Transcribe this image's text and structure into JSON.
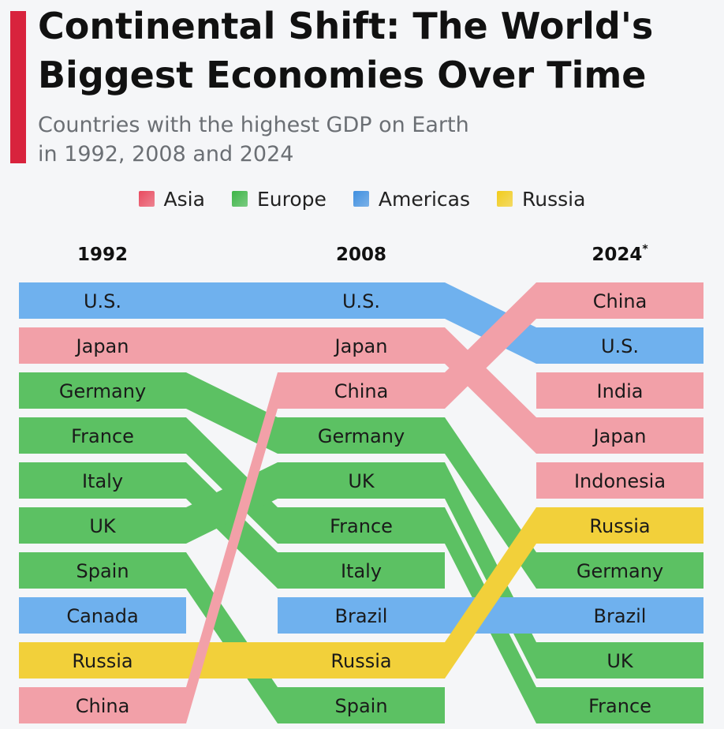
{
  "header": {
    "title": "Continental Shift: The World's Biggest Economies Over Time",
    "subtitle_line1": "Countries with the highest GDP on Earth",
    "subtitle_line2": "in 1992, 2008 and 2024"
  },
  "colors": {
    "accent": "#d8233d",
    "Asia": "#f2a0a8",
    "Europe": "#5cc163",
    "Americas": "#6fb1ee",
    "Russia": "#f2d03a"
  },
  "legend": [
    {
      "label": "Asia",
      "color": "#e94a5f"
    },
    {
      "label": "Europe",
      "color": "#3db547"
    },
    {
      "label": "Americas",
      "color": "#3f8fe0"
    },
    {
      "label": "Russia",
      "color": "#f2cc1c"
    }
  ],
  "chart_data": {
    "type": "bump",
    "columns": [
      "1992",
      "2008",
      "2024"
    ],
    "column_note": "*",
    "rankings": {
      "1992": [
        "U.S.",
        "Japan",
        "Germany",
        "France",
        "Italy",
        "UK",
        "Spain",
        "Canada",
        "Russia",
        "China"
      ],
      "2008": [
        "U.S.",
        "Japan",
        "China",
        "Germany",
        "UK",
        "France",
        "Italy",
        "Brazil",
        "Russia",
        "Spain"
      ],
      "2024": [
        "China",
        "U.S.",
        "India",
        "Japan",
        "Indonesia",
        "Russia",
        "Germany",
        "Brazil",
        "UK",
        "France"
      ]
    },
    "regions": {
      "U.S.": "Americas",
      "Canada": "Americas",
      "Brazil": "Americas",
      "Japan": "Asia",
      "China": "Asia",
      "India": "Asia",
      "Indonesia": "Asia",
      "Germany": "Europe",
      "France": "Europe",
      "Italy": "Europe",
      "UK": "Europe",
      "Spain": "Europe",
      "Russia": "Russia"
    }
  }
}
